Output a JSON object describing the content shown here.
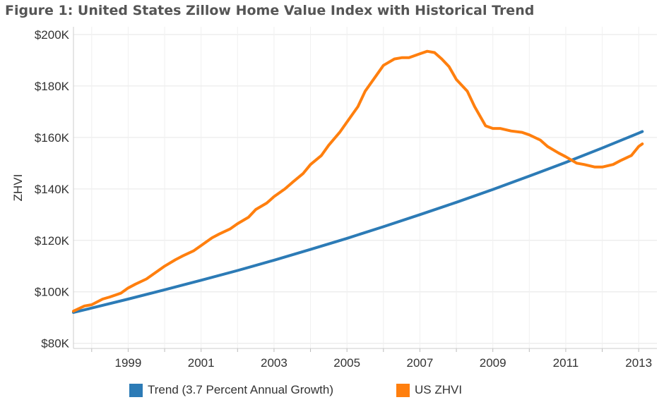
{
  "title": "Figure 1: United States Zillow Home Value Index with Historical Trend",
  "chart_data": {
    "type": "line",
    "ylabel": "ZHVI",
    "xlabel": "",
    "xlim": [
      1997.5,
      2013.5
    ],
    "ylim": [
      78000,
      203000
    ],
    "x_ticks": [
      1999,
      2001,
      2003,
      2005,
      2007,
      2009,
      2011,
      2013
    ],
    "x_tick_labels": [
      "1999",
      "2001",
      "2003",
      "2005",
      "2007",
      "2009",
      "2011",
      "2013"
    ],
    "y_ticks": [
      80000,
      100000,
      120000,
      140000,
      160000,
      180000,
      200000
    ],
    "y_tick_labels": [
      "$80K",
      "$100K",
      "$120K",
      "$140K",
      "$160K",
      "$180K",
      "$200K"
    ],
    "grid": true,
    "legend_position": "bottom",
    "series": [
      {
        "name": "Trend (3.7 Percent Annual Growth)",
        "color": "#2c7bb6",
        "x": [
          1997.5,
          1998,
          1999,
          2000,
          2001,
          2002,
          2003,
          2004,
          2005,
          2006,
          2007,
          2008,
          2009,
          2010,
          2011,
          2012,
          2013,
          2013.1
        ],
        "y": [
          92000,
          93700,
          97200,
          100800,
          104500,
          108300,
          112300,
          116500,
          120800,
          125300,
          130000,
          134800,
          139800,
          145000,
          150300,
          155900,
          161700,
          162300
        ]
      },
      {
        "name": "US ZHVI",
        "color": "#ff7f0e",
        "x": [
          1997.5,
          1997.8,
          1998,
          1998.3,
          1998.5,
          1998.8,
          1999,
          1999.2,
          1999.5,
          1999.8,
          2000,
          2000.3,
          2000.5,
          2000.8,
          2001,
          2001.3,
          2001.5,
          2001.8,
          2002,
          2002.3,
          2002.5,
          2002.8,
          2003,
          2003.3,
          2003.5,
          2003.8,
          2004,
          2004.3,
          2004.5,
          2004.8,
          2005,
          2005.3,
          2005.5,
          2005.8,
          2006,
          2006.3,
          2006.5,
          2006.7,
          2007,
          2007.2,
          2007.4,
          2007.6,
          2007.8,
          2008,
          2008.3,
          2008.5,
          2008.8,
          2009,
          2009.2,
          2009.5,
          2009.8,
          2010,
          2010.3,
          2010.5,
          2010.8,
          2011,
          2011.3,
          2011.5,
          2011.8,
          2012,
          2012.3,
          2012.5,
          2012.8,
          2013,
          2013.1
        ],
        "y": [
          92500,
          94500,
          95000,
          97200,
          98000,
          99500,
          101500,
          103000,
          105000,
          108000,
          110000,
          112500,
          114000,
          116000,
          118000,
          121000,
          122500,
          124500,
          126500,
          129000,
          132000,
          134500,
          137000,
          140000,
          142500,
          146000,
          149500,
          153000,
          157000,
          162000,
          166000,
          172000,
          178000,
          184000,
          188000,
          190500,
          191000,
          191000,
          192500,
          193500,
          193000,
          190500,
          187500,
          182500,
          178000,
          172000,
          164500,
          163500,
          163500,
          162500,
          162000,
          161000,
          159000,
          156500,
          154000,
          152500,
          150000,
          149500,
          148500,
          148500,
          149500,
          151000,
          153000,
          156500,
          157500
        ]
      }
    ]
  }
}
